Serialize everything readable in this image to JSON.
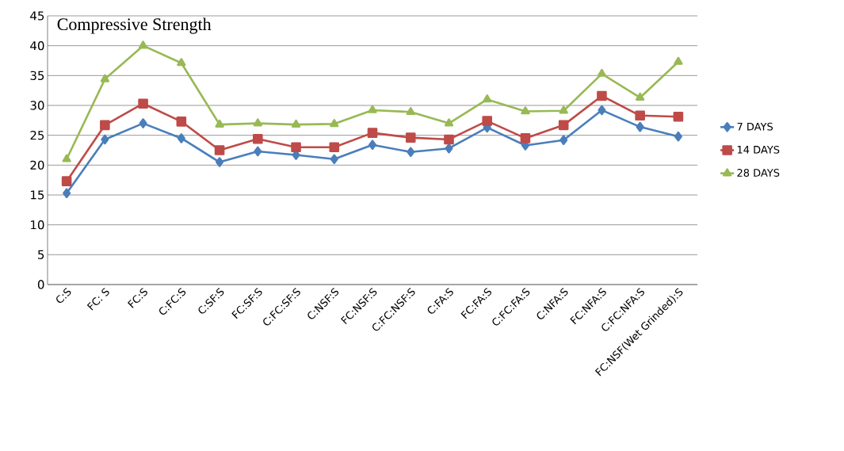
{
  "chart_data": {
    "type": "line",
    "title": "Compressive Strength",
    "categories": [
      "C:S",
      "FC: S",
      "FC:S",
      "C:FC:S",
      "C:SF:S",
      "FC:SF:S",
      "C:FC:SF:S",
      "C:NSF:S",
      "FC:NSF:S",
      "C:FC:NSF:S",
      "C:FA:S",
      "FC:FA:S",
      "C:FC:FA:S",
      "C:NFA:S",
      "FC:NFA:S",
      "C:FC:NFA:S",
      "FC:NSF(Wet Grinded):S"
    ],
    "series": [
      {
        "name": "7 DAYS",
        "color": "#4a7ebb",
        "marker": "diamond",
        "values": [
          15.3,
          24.3,
          27,
          24.5,
          20.5,
          22.3,
          21.7,
          21,
          23.4,
          22.2,
          22.8,
          26.3,
          23.3,
          24.2,
          29.2,
          26.4,
          24.8
        ]
      },
      {
        "name": "14 DAYS",
        "color": "#be4b48",
        "marker": "square",
        "values": [
          17.3,
          26.7,
          30.3,
          27.3,
          22.5,
          24.4,
          23,
          23,
          25.4,
          24.6,
          24.3,
          27.4,
          24.5,
          26.7,
          31.6,
          28.3,
          28.1
        ]
      },
      {
        "name": "28 DAYS",
        "color": "#98b954",
        "marker": "triangle",
        "values": [
          21,
          34.4,
          40,
          37.1,
          26.8,
          27,
          26.8,
          26.9,
          29.2,
          28.9,
          27,
          31,
          29,
          29.1,
          35.3,
          31.3,
          37.3
        ]
      }
    ],
    "ylim": [
      0,
      45
    ],
    "yticks": [
      0,
      5,
      10,
      15,
      20,
      25,
      30,
      35,
      40,
      45
    ],
    "grid": "y",
    "legend": "right",
    "line_style": "solid"
  }
}
